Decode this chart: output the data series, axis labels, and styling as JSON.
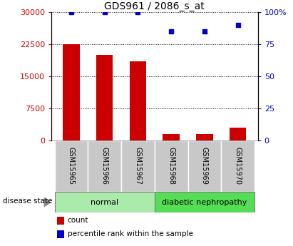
{
  "title": "GDS961 / 2086_s_at",
  "samples": [
    "GSM15965",
    "GSM15966",
    "GSM15967",
    "GSM15968",
    "GSM15969",
    "GSM15970"
  ],
  "counts": [
    22500,
    20000,
    18500,
    1500,
    1500,
    3000
  ],
  "percentiles": [
    100,
    100,
    100,
    85,
    85,
    90
  ],
  "ylim_left": [
    0,
    30000
  ],
  "ylim_right": [
    0,
    100
  ],
  "yticks_left": [
    0,
    7500,
    15000,
    22500,
    30000
  ],
  "ytick_labels_left": [
    "0",
    "7500",
    "15000",
    "22500",
    "30000"
  ],
  "yticks_right": [
    0,
    25,
    50,
    75,
    100
  ],
  "ytick_labels_right": [
    "0",
    "25",
    "50",
    "75",
    "100%"
  ],
  "bar_color": "#cc0000",
  "scatter_color": "#0000cc",
  "groups": [
    {
      "label": "normal",
      "n": 3,
      "color": "#aaeaaa"
    },
    {
      "label": "diabetic nephropathy",
      "n": 3,
      "color": "#55dd55"
    }
  ],
  "disease_label": "disease state",
  "legend_items": [
    {
      "label": "count",
      "color": "#cc0000"
    },
    {
      "label": "percentile rank within the sample",
      "color": "#0000cc"
    }
  ],
  "title_fontsize": 10,
  "axis_color_left": "#cc0000",
  "axis_color_right": "#0000cc",
  "bg_color": "#ffffff",
  "box_color": "#c8c8c8",
  "bar_width": 0.5
}
